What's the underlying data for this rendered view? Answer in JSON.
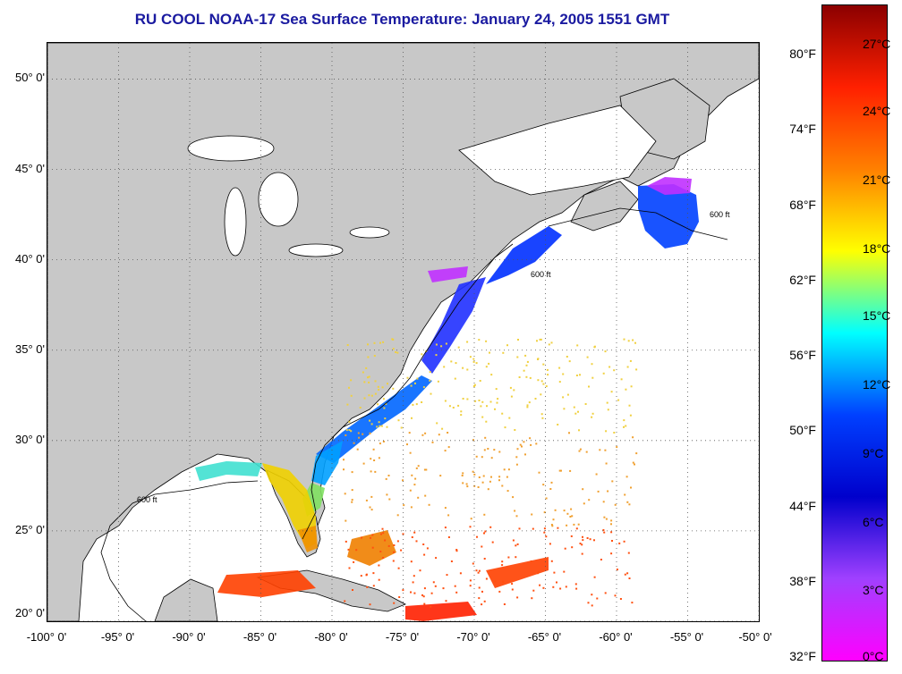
{
  "title": "RU COOL  NOAA-17  Sea Surface Temperature:  January 24, 2005 1551 GMT",
  "map": {
    "lon_range": [
      -100,
      -50
    ],
    "lat_range": [
      20,
      52
    ],
    "lat_ticks": [
      {
        "value": 50,
        "label": "50° 0'"
      },
      {
        "value": 45,
        "label": "45° 0'"
      },
      {
        "value": 40,
        "label": "40° 0'"
      },
      {
        "value": 35,
        "label": "35° 0'"
      },
      {
        "value": 30,
        "label": "30° 0'"
      },
      {
        "value": 25,
        "label": "25° 0'"
      },
      {
        "value": 20,
        "label": "20° 0'"
      }
    ],
    "lon_ticks": [
      {
        "value": -100,
        "label": "-100° 0'"
      },
      {
        "value": -95,
        "label": "-95° 0'"
      },
      {
        "value": -90,
        "label": "-90° 0'"
      },
      {
        "value": -85,
        "label": "-85° 0'"
      },
      {
        "value": -80,
        "label": "-80° 0'"
      },
      {
        "value": -75,
        "label": "-75° 0'"
      },
      {
        "value": -70,
        "label": "-70° 0'"
      },
      {
        "value": -65,
        "label": "-65° 0'"
      },
      {
        "value": -60,
        "label": "-60° 0'"
      },
      {
        "value": -55,
        "label": "-55° 0'"
      },
      {
        "value": -50,
        "label": "-50° 0'"
      }
    ],
    "contour_label": "600 ft",
    "land_color": "#c8c8c8",
    "ocean_color": "#ffffff",
    "gridlines": true
  },
  "colorbar": {
    "stops": [
      "#8b0000",
      "#ff2000",
      "#ff8000",
      "#ffff00",
      "#00ffff",
      "#0040ff",
      "#0000cc",
      "#a040ff",
      "#ff00ff"
    ],
    "fahrenheit_labels": [
      {
        "text": "80°F",
        "pos": 0.075
      },
      {
        "text": "74°F",
        "pos": 0.19
      },
      {
        "text": "68°F",
        "pos": 0.305
      },
      {
        "text": "62°F",
        "pos": 0.42
      },
      {
        "text": "56°F",
        "pos": 0.535
      },
      {
        "text": "50°F",
        "pos": 0.65
      },
      {
        "text": "44°F",
        "pos": 0.765
      },
      {
        "text": "38°F",
        "pos": 0.88
      },
      {
        "text": "32°F",
        "pos": 0.995
      }
    ],
    "celsius_labels": [
      {
        "text": "27°C",
        "pos": 0.06
      },
      {
        "text": "24°C",
        "pos": 0.163
      },
      {
        "text": "21°C",
        "pos": 0.267
      },
      {
        "text": "18°C",
        "pos": 0.372
      },
      {
        "text": "15°C",
        "pos": 0.475
      },
      {
        "text": "12°C",
        "pos": 0.58
      },
      {
        "text": "9°C",
        "pos": 0.685
      },
      {
        "text": "6°C",
        "pos": 0.79
      },
      {
        "text": "3°C",
        "pos": 0.893
      },
      {
        "text": "0°C",
        "pos": 0.995
      }
    ]
  }
}
